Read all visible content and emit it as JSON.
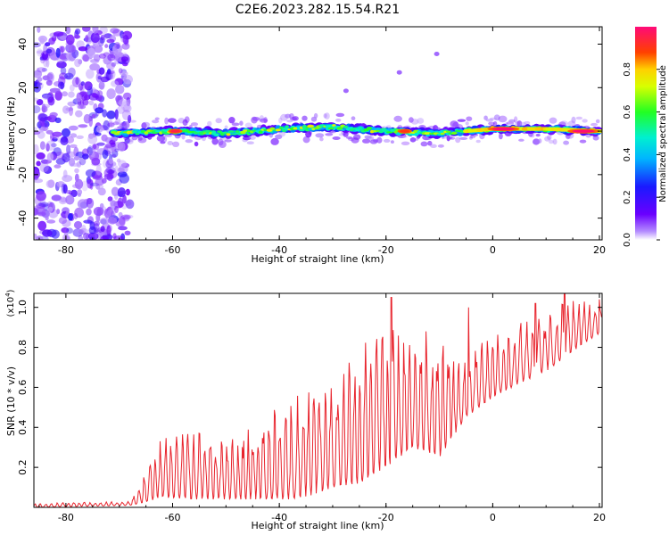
{
  "title": "C2E6.2023.282.15.54.R21",
  "chart_data": [
    {
      "type": "heatmap",
      "xlabel": "Height of straight line (km)",
      "ylabel": "Frequency (Hz)",
      "xlim": [
        -86,
        20.5
      ],
      "ylim": [
        -50,
        48
      ],
      "xticks": [
        -80,
        -60,
        -40,
        -20,
        0,
        20
      ],
      "yticks": [
        -40,
        -20,
        0,
        20,
        40
      ],
      "colorbar": {
        "label": "Normalized spectral amplitude",
        "range": [
          0,
          1
        ],
        "ticks": [
          0.0,
          0.2,
          0.4,
          0.6,
          0.8
        ],
        "colormap": "rainbow (violet-blue-cyan-green-yellow-red-magenta)"
      },
      "description_points": {
        "noise_region_km": [
          -86,
          -70
        ],
        "band_center_hz": [
          [
            -70,
            -1
          ],
          [
            -60,
            0
          ],
          [
            -50,
            -1
          ],
          [
            -40,
            1
          ],
          [
            -30,
            2
          ],
          [
            -20,
            0
          ],
          [
            -10,
            -1
          ],
          [
            0,
            1
          ],
          [
            10,
            1
          ],
          [
            20,
            0
          ]
        ],
        "peaks": [
          {
            "x": -59.5,
            "y": 0,
            "amplitude": 0.95
          },
          {
            "x": -16.5,
            "y": 0,
            "amplitude": 0.9
          },
          {
            "x": 2,
            "y": 1,
            "amplitude": 1.0
          },
          {
            "x": 17,
            "y": 0,
            "amplitude": 1.0
          }
        ],
        "isolated_blobs": [
          {
            "x": -27.5,
            "y": 18.5
          },
          {
            "x": -17.5,
            "y": 27
          },
          {
            "x": -10.5,
            "y": 35.5
          }
        ]
      }
    },
    {
      "type": "line",
      "xlabel": "Height of straight line (km)",
      "ylabel": "SNR (10 * v/v)",
      "y_multiplier": "(x10",
      "y_multiplier_exp": "4",
      "y_multiplier_close": ")",
      "xlim": [
        -86,
        20.5
      ],
      "ylim": [
        0,
        1.07
      ],
      "xticks": [
        -80,
        -60,
        -40,
        -20,
        0,
        20
      ],
      "yticks": [
        0.2,
        0.4,
        0.6,
        0.8,
        1.0
      ],
      "series": [
        {
          "color": "#e8232c",
          "envelope": [
            {
              "x": -86,
              "low": 0.0,
              "high": 0.02
            },
            {
              "x": -68,
              "low": 0.01,
              "high": 0.03
            },
            {
              "x": -66,
              "low": 0.02,
              "high": 0.12
            },
            {
              "x": -62,
              "low": 0.05,
              "high": 0.35
            },
            {
              "x": -56,
              "low": 0.04,
              "high": 0.38
            },
            {
              "x": -50,
              "low": 0.04,
              "high": 0.32
            },
            {
              "x": -44,
              "low": 0.04,
              "high": 0.42
            },
            {
              "x": -38,
              "low": 0.04,
              "high": 0.55
            },
            {
              "x": -34,
              "low": 0.06,
              "high": 0.62
            },
            {
              "x": -30,
              "low": 0.1,
              "high": 0.6
            },
            {
              "x": -25,
              "low": 0.12,
              "high": 0.8
            },
            {
              "x": -20,
              "low": 0.2,
              "high": 0.9
            },
            {
              "x": -15,
              "low": 0.3,
              "high": 0.85
            },
            {
              "x": -10,
              "low": 0.25,
              "high": 0.82
            },
            {
              "x": -5,
              "low": 0.45,
              "high": 0.78
            },
            {
              "x": 0,
              "low": 0.55,
              "high": 0.85
            },
            {
              "x": 5,
              "low": 0.62,
              "high": 0.92
            },
            {
              "x": 10,
              "low": 0.68,
              "high": 0.95
            },
            {
              "x": 15,
              "low": 0.78,
              "high": 1.06
            },
            {
              "x": 20.5,
              "low": 0.88,
              "high": 1.02
            }
          ],
          "notable_peaks": [
            {
              "x": -19,
              "y": 1.05
            },
            {
              "x": -12.5,
              "y": 0.88
            },
            {
              "x": -4.5,
              "y": 1.0
            },
            {
              "x": 8,
              "y": 1.02
            },
            {
              "x": 13.5,
              "y": 1.07
            },
            {
              "x": 20,
              "y": 1.04
            }
          ]
        }
      ]
    }
  ]
}
